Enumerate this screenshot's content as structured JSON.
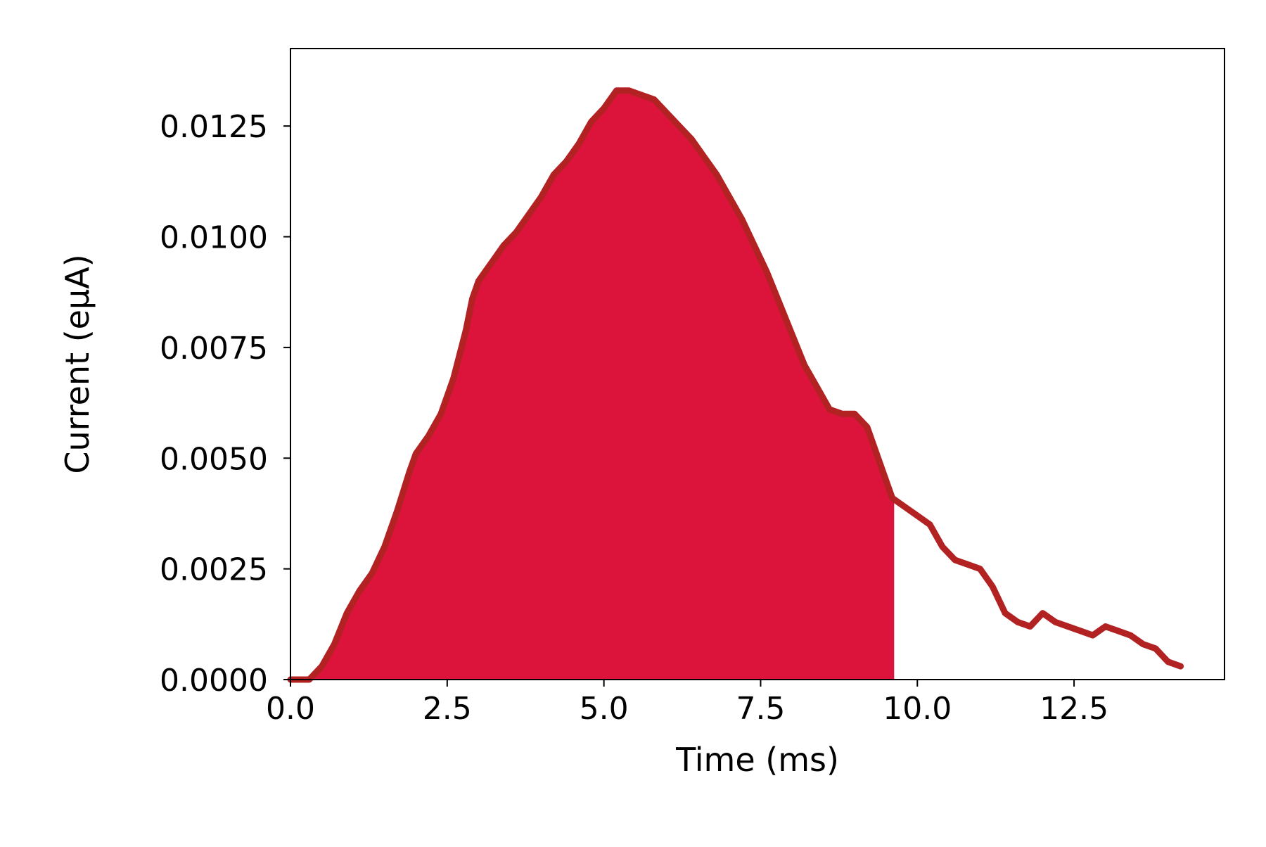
{
  "chart_data": {
    "type": "area",
    "title": "",
    "xlabel": "Time (ms)",
    "ylabel": "Current (eμA)",
    "xlim": [
      0,
      14.9
    ],
    "ylim": [
      0,
      0.01425
    ],
    "xticks": [
      0.0,
      2.5,
      5.0,
      7.5,
      10.0,
      12.5
    ],
    "xtick_labels": [
      "0.0",
      "2.5",
      "5.0",
      "7.5",
      "10.0",
      "12.5"
    ],
    "yticks": [
      0.0,
      0.0025,
      0.005,
      0.0075,
      0.01,
      0.0125
    ],
    "ytick_labels": [
      "0.0000",
      "0.0025",
      "0.0050",
      "0.0075",
      "0.0100",
      "0.0125"
    ],
    "grid": false,
    "fill_until_x": 9.63,
    "series": [
      {
        "line_color": "#b22222",
        "fill_color": "#dc143c",
        "x": [
          0.0,
          0.3,
          0.5,
          0.7,
          0.9,
          1.1,
          1.3,
          1.5,
          1.7,
          1.9,
          2.0,
          2.2,
          2.4,
          2.6,
          2.8,
          2.9,
          3.0,
          3.2,
          3.4,
          3.6,
          3.8,
          4.0,
          4.2,
          4.4,
          4.6,
          4.8,
          5.0,
          5.2,
          5.4,
          5.6,
          5.8,
          6.0,
          6.2,
          6.4,
          6.6,
          6.8,
          7.0,
          7.2,
          7.4,
          7.6,
          7.8,
          8.0,
          8.2,
          8.4,
          8.6,
          8.8,
          9.0,
          9.2,
          9.4,
          9.6,
          9.8,
          10.0,
          10.2,
          10.4,
          10.6,
          10.8,
          11.0,
          11.2,
          11.4,
          11.6,
          11.8,
          12.0,
          12.2,
          12.4,
          12.6,
          12.8,
          13.0,
          13.2,
          13.4,
          13.6,
          13.8,
          14.0,
          14.2
        ],
        "y": [
          0.0,
          0.0,
          0.0003,
          0.0008,
          0.0015,
          0.002,
          0.0024,
          0.003,
          0.0038,
          0.0047,
          0.0051,
          0.0055,
          0.006,
          0.0068,
          0.0079,
          0.0086,
          0.009,
          0.0094,
          0.0098,
          0.0101,
          0.0105,
          0.0109,
          0.0114,
          0.0117,
          0.0121,
          0.0126,
          0.0129,
          0.0133,
          0.0133,
          0.0132,
          0.0131,
          0.0128,
          0.0125,
          0.0122,
          0.0118,
          0.0114,
          0.0109,
          0.0104,
          0.0098,
          0.0092,
          0.0085,
          0.0078,
          0.0071,
          0.0066,
          0.0061,
          0.006,
          0.006,
          0.0057,
          0.0049,
          0.0041,
          0.0039,
          0.0037,
          0.0035,
          0.003,
          0.0027,
          0.0026,
          0.0025,
          0.0021,
          0.0015,
          0.0013,
          0.0012,
          0.0015,
          0.0013,
          0.0012,
          0.0011,
          0.001,
          0.0012,
          0.0011,
          0.001,
          0.0008,
          0.0007,
          0.0004,
          0.0003
        ]
      }
    ]
  }
}
